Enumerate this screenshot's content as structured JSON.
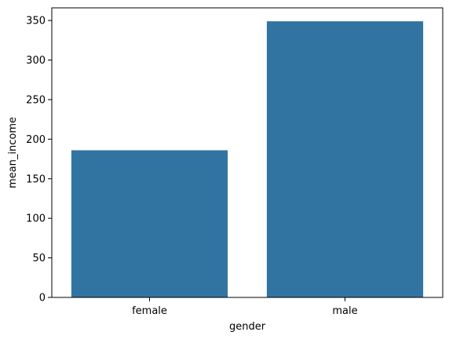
{
  "chart_data": {
    "type": "bar",
    "categories": [
      "female",
      "male"
    ],
    "values": [
      186,
      349
    ],
    "xlabel": "gender",
    "ylabel": "mean_income",
    "ylim": [
      0,
      366
    ],
    "yticks": [
      0,
      50,
      100,
      150,
      200,
      250,
      300,
      350
    ],
    "grid": false,
    "bar_color": "#3274a1"
  }
}
